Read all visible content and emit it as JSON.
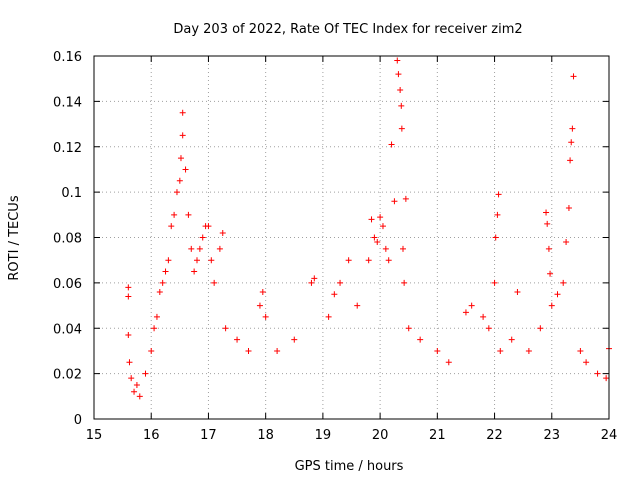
{
  "colors": {
    "marker": "#ff0000",
    "grid": "#a0a0a0",
    "axis": "#000000",
    "background": "#ffffff"
  },
  "chart_data": {
    "type": "scatter",
    "title": "Day 203 of 2022, Rate Of TEC Index for receiver zim2",
    "xlabel": "GPS time / hours",
    "ylabel": "ROTI / TECUs",
    "xlim": [
      15,
      24
    ],
    "ylim": [
      0,
      0.16
    ],
    "grid": true,
    "legend": "none",
    "marker": "plus",
    "xticks": [
      15,
      16,
      17,
      18,
      19,
      20,
      21,
      22,
      23,
      24
    ],
    "xtick_labels": [
      "15",
      "16",
      "17",
      "18",
      "19",
      "20",
      "21",
      "22",
      "23",
      "24"
    ],
    "yticks": [
      0,
      0.02,
      0.04,
      0.06,
      0.08,
      0.1,
      0.12,
      0.14,
      0.16
    ],
    "ytick_labels": [
      "0",
      "0.02",
      "0.04",
      "0.06",
      "0.08",
      "0.1",
      "0.12",
      "0.14",
      "0.16"
    ],
    "series": [
      {
        "color": "#ff0000",
        "points": [
          [
            15.6,
            0.058
          ],
          [
            15.6,
            0.054
          ],
          [
            15.6,
            0.037
          ],
          [
            15.62,
            0.025
          ],
          [
            15.65,
            0.018
          ],
          [
            15.7,
            0.012
          ],
          [
            15.75,
            0.015
          ],
          [
            15.8,
            0.01
          ],
          [
            15.9,
            0.02
          ],
          [
            16.0,
            0.03
          ],
          [
            16.05,
            0.04
          ],
          [
            16.1,
            0.045
          ],
          [
            16.15,
            0.056
          ],
          [
            16.2,
            0.06
          ],
          [
            16.25,
            0.065
          ],
          [
            16.3,
            0.07
          ],
          [
            16.35,
            0.085
          ],
          [
            16.4,
            0.09
          ],
          [
            16.45,
            0.1
          ],
          [
            16.5,
            0.105
          ],
          [
            16.52,
            0.115
          ],
          [
            16.55,
            0.125
          ],
          [
            16.55,
            0.135
          ],
          [
            16.6,
            0.11
          ],
          [
            16.65,
            0.09
          ],
          [
            16.7,
            0.075
          ],
          [
            16.75,
            0.065
          ],
          [
            16.8,
            0.07
          ],
          [
            16.85,
            0.075
          ],
          [
            16.9,
            0.08
          ],
          [
            16.95,
            0.085
          ],
          [
            17.0,
            0.085
          ],
          [
            17.05,
            0.07
          ],
          [
            17.1,
            0.06
          ],
          [
            17.2,
            0.075
          ],
          [
            17.25,
            0.082
          ],
          [
            17.3,
            0.04
          ],
          [
            17.5,
            0.035
          ],
          [
            17.7,
            0.03
          ],
          [
            17.9,
            0.05
          ],
          [
            17.95,
            0.056
          ],
          [
            18.0,
            0.045
          ],
          [
            18.2,
            0.03
          ],
          [
            18.5,
            0.035
          ],
          [
            18.8,
            0.06
          ],
          [
            18.85,
            0.062
          ],
          [
            19.1,
            0.045
          ],
          [
            19.2,
            0.055
          ],
          [
            19.3,
            0.06
          ],
          [
            19.45,
            0.07
          ],
          [
            19.6,
            0.05
          ],
          [
            19.8,
            0.07
          ],
          [
            19.85,
            0.088
          ],
          [
            19.9,
            0.08
          ],
          [
            19.95,
            0.078
          ],
          [
            20.0,
            0.089
          ],
          [
            20.05,
            0.085
          ],
          [
            20.1,
            0.075
          ],
          [
            20.15,
            0.07
          ],
          [
            20.2,
            0.121
          ],
          [
            20.25,
            0.096
          ],
          [
            20.3,
            0.158
          ],
          [
            20.32,
            0.152
          ],
          [
            20.35,
            0.145
          ],
          [
            20.37,
            0.138
          ],
          [
            20.38,
            0.128
          ],
          [
            20.4,
            0.075
          ],
          [
            20.42,
            0.06
          ],
          [
            20.45,
            0.097
          ],
          [
            20.5,
            0.04
          ],
          [
            20.7,
            0.035
          ],
          [
            21.0,
            0.03
          ],
          [
            21.2,
            0.025
          ],
          [
            21.5,
            0.047
          ],
          [
            21.6,
            0.05
          ],
          [
            21.8,
            0.045
          ],
          [
            21.9,
            0.04
          ],
          [
            22.0,
            0.06
          ],
          [
            22.02,
            0.08
          ],
          [
            22.05,
            0.09
          ],
          [
            22.07,
            0.099
          ],
          [
            22.1,
            0.03
          ],
          [
            22.3,
            0.035
          ],
          [
            22.4,
            0.056
          ],
          [
            22.6,
            0.03
          ],
          [
            22.8,
            0.04
          ],
          [
            22.9,
            0.091
          ],
          [
            22.92,
            0.086
          ],
          [
            22.95,
            0.075
          ],
          [
            22.97,
            0.064
          ],
          [
            23.0,
            0.05
          ],
          [
            23.1,
            0.055
          ],
          [
            23.2,
            0.06
          ],
          [
            23.25,
            0.078
          ],
          [
            23.3,
            0.093
          ],
          [
            23.32,
            0.114
          ],
          [
            23.34,
            0.122
          ],
          [
            23.36,
            0.128
          ],
          [
            23.38,
            0.151
          ],
          [
            23.5,
            0.03
          ],
          [
            23.6,
            0.025
          ],
          [
            23.8,
            0.02
          ],
          [
            23.95,
            0.018
          ],
          [
            24.0,
            0.031
          ]
        ]
      }
    ]
  }
}
